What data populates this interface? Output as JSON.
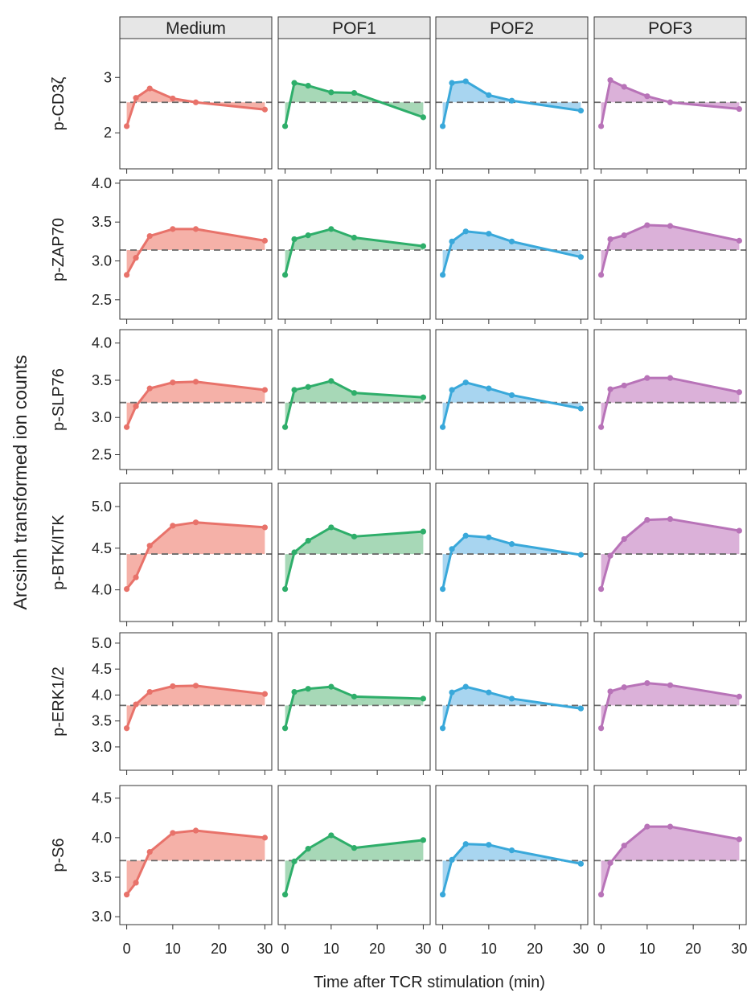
{
  "chart_data": {
    "type": "line",
    "ylabel": "Arcsinh transformed ion counts",
    "xlabel": "Time after TCR stimulation (min)",
    "x": [
      0,
      2,
      5,
      10,
      15,
      30
    ],
    "xticks": [
      0,
      10,
      20,
      30
    ],
    "xlim": [
      -1.5,
      31.5
    ],
    "conditions": [
      {
        "name": "Medium",
        "color": "#E8726A",
        "fill": "#F4A99F"
      },
      {
        "name": "POF1",
        "color": "#2EAE6A",
        "fill": "#9DD4AF"
      },
      {
        "name": "POF2",
        "color": "#39A8DA",
        "fill": "#9ED0EE"
      },
      {
        "name": "POF3",
        "color": "#B873B8",
        "fill": "#D7A9D5"
      }
    ],
    "dashed_style": "grey dashed baseline",
    "panels": [
      {
        "marker": "p-CD3ζ",
        "ylim": [
          1.35,
          3.7
        ],
        "yticks": [
          "2",
          "3"
        ],
        "ytick_values": [
          2,
          3
        ],
        "baseline": 2.55,
        "series": [
          [
            2.12,
            2.63,
            2.8,
            2.62,
            2.55,
            2.42
          ],
          [
            2.12,
            2.9,
            2.85,
            2.73,
            2.72,
            2.28
          ],
          [
            2.12,
            2.9,
            2.93,
            2.68,
            2.58,
            2.4
          ],
          [
            2.12,
            2.95,
            2.83,
            2.66,
            2.55,
            2.43
          ]
        ]
      },
      {
        "marker": "p-ZAP70",
        "ylim": [
          2.25,
          4.04
        ],
        "yticks": [
          "2.5",
          "3.0",
          "3.5",
          "4.0"
        ],
        "ytick_values": [
          2.5,
          3.0,
          3.5,
          4.0
        ],
        "baseline": 3.14,
        "series": [
          [
            2.82,
            3.04,
            3.32,
            3.41,
            3.41,
            3.26
          ],
          [
            2.82,
            3.28,
            3.33,
            3.41,
            3.3,
            3.19
          ],
          [
            2.82,
            3.25,
            3.38,
            3.35,
            3.25,
            3.05
          ],
          [
            2.82,
            3.28,
            3.33,
            3.46,
            3.45,
            3.26
          ]
        ]
      },
      {
        "marker": "p-SLP76",
        "ylim": [
          2.3,
          4.18
        ],
        "yticks": [
          "2.5",
          "3.0",
          "3.5",
          "4.0"
        ],
        "ytick_values": [
          2.5,
          3.0,
          3.5,
          4.0
        ],
        "baseline": 3.2,
        "series": [
          [
            2.87,
            3.15,
            3.39,
            3.47,
            3.48,
            3.37
          ],
          [
            2.87,
            3.37,
            3.41,
            3.49,
            3.33,
            3.27
          ],
          [
            2.87,
            3.37,
            3.47,
            3.39,
            3.3,
            3.12
          ],
          [
            2.87,
            3.38,
            3.43,
            3.53,
            3.53,
            3.34
          ]
        ]
      },
      {
        "marker": "p-BTK/ITK",
        "ylim": [
          3.62,
          5.28
        ],
        "yticks": [
          "4.0",
          "4.5",
          "5.0"
        ],
        "ytick_values": [
          4.0,
          4.5,
          5.0
        ],
        "baseline": 4.43,
        "series": [
          [
            4.01,
            4.15,
            4.53,
            4.77,
            4.81,
            4.75
          ],
          [
            4.01,
            4.45,
            4.59,
            4.75,
            4.64,
            4.7
          ],
          [
            4.01,
            4.49,
            4.65,
            4.63,
            4.55,
            4.42
          ],
          [
            4.01,
            4.41,
            4.61,
            4.84,
            4.85,
            4.71
          ]
        ]
      },
      {
        "marker": "p-ERK1/2",
        "ylim": [
          2.55,
          5.2
        ],
        "yticks": [
          "3.0",
          "3.5",
          "4.0",
          "4.5",
          "5.0"
        ],
        "ytick_values": [
          3.0,
          3.5,
          4.0,
          4.5,
          5.0
        ],
        "baseline": 3.8,
        "series": [
          [
            3.36,
            3.82,
            4.06,
            4.17,
            4.18,
            4.02
          ],
          [
            3.36,
            4.06,
            4.12,
            4.16,
            3.97,
            3.93
          ],
          [
            3.36,
            4.05,
            4.16,
            4.05,
            3.93,
            3.74
          ],
          [
            3.36,
            4.07,
            4.15,
            4.23,
            4.19,
            3.97
          ]
        ]
      },
      {
        "marker": "p-S6",
        "ylim": [
          2.9,
          4.66
        ],
        "yticks": [
          "3.0",
          "3.5",
          "4.0",
          "4.5"
        ],
        "ytick_values": [
          3.0,
          3.5,
          4.0,
          4.5
        ],
        "baseline": 3.71,
        "series": [
          [
            3.28,
            3.43,
            3.82,
            4.06,
            4.09,
            4.0
          ],
          [
            3.28,
            3.7,
            3.86,
            4.03,
            3.87,
            3.97
          ],
          [
            3.28,
            3.72,
            3.92,
            3.91,
            3.84,
            3.67
          ],
          [
            3.28,
            3.68,
            3.9,
            4.14,
            4.14,
            3.98
          ]
        ]
      }
    ]
  }
}
